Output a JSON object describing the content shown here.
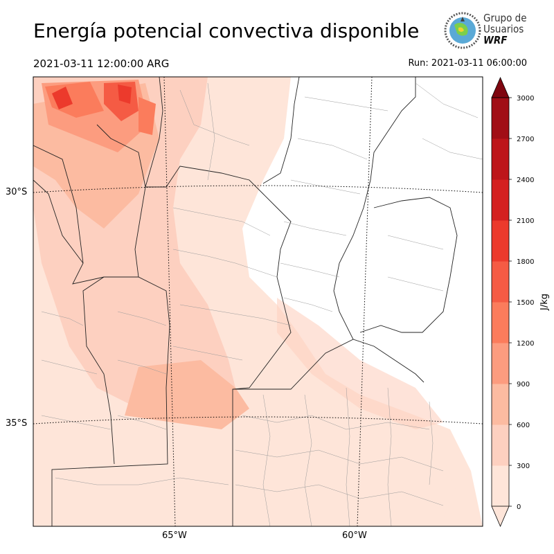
{
  "title": "Energía potencial convectiva disponible",
  "valid_time": "2021-03-11 12:00:00 ARG",
  "run_label": "Run: 2021-03-11 06:00:00",
  "logo": {
    "line1": "Grupo de",
    "line2": "Usuarios",
    "line3": "WRF"
  },
  "map": {
    "lat_labels": [
      "30°S",
      "35°S"
    ],
    "lon_labels": [
      "65°W",
      "60°W"
    ]
  },
  "colorbar": {
    "label": "J/kg",
    "ticks": [
      "0",
      "300",
      "600",
      "900",
      "1200",
      "1500",
      "1800",
      "2100",
      "2400",
      "2700",
      "3000"
    ],
    "colors": [
      "#fee5d9",
      "#fdd0c0",
      "#fcbba1",
      "#fc9c7f",
      "#fb7c5c",
      "#f55b44",
      "#ec3a2c",
      "#d42020",
      "#bd151a",
      "#a10e16",
      "#7f0610"
    ],
    "extend": "both"
  }
}
